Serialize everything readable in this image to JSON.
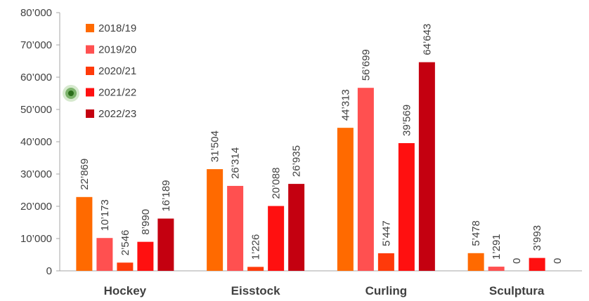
{
  "chart_data": {
    "type": "bar",
    "title": "",
    "xlabel": "",
    "ylabel": "",
    "categories": [
      "Hockey",
      "Eisstock",
      "Curling",
      "Sculptura"
    ],
    "series": [
      {
        "name": "2018/19",
        "color": "#FF6A00",
        "values": [
          22869,
          31504,
          44313,
          5478
        ],
        "labels": [
          "22’869",
          "31’504",
          "44’313",
          "5’478"
        ]
      },
      {
        "name": "2019/20",
        "color": "#FF5050",
        "values": [
          10173,
          26314,
          56699,
          1291
        ],
        "labels": [
          "10’173",
          "26’314",
          "56’699",
          "1’291"
        ]
      },
      {
        "name": "2020/21",
        "color": "#FF3A0A",
        "values": [
          2546,
          1226,
          5447,
          0
        ],
        "labels": [
          "2’546",
          "1’226",
          "5’447",
          "0"
        ]
      },
      {
        "name": "2021/22",
        "color": "#FF1010",
        "values": [
          8990,
          20088,
          39569,
          3993
        ],
        "labels": [
          "8’990",
          "20’088",
          "39’569",
          "3’993"
        ]
      },
      {
        "name": "2022/23",
        "color": "#C40010",
        "values": [
          16189,
          26935,
          64643,
          0
        ],
        "labels": [
          "16’189",
          "26’935",
          "64’643",
          "0"
        ]
      }
    ],
    "ylim": [
      0,
      80000
    ],
    "yticks": [
      0,
      10000,
      20000,
      30000,
      40000,
      50000,
      60000,
      70000,
      80000
    ],
    "ytick_labels": [
      "0",
      "10’000",
      "20’000",
      "30’000",
      "40’000",
      "50’000",
      "60’000",
      "70’000",
      "80’000"
    ],
    "grid": false,
    "legend": "top-left",
    "decoration_icon": "green-sparkle-icon"
  }
}
